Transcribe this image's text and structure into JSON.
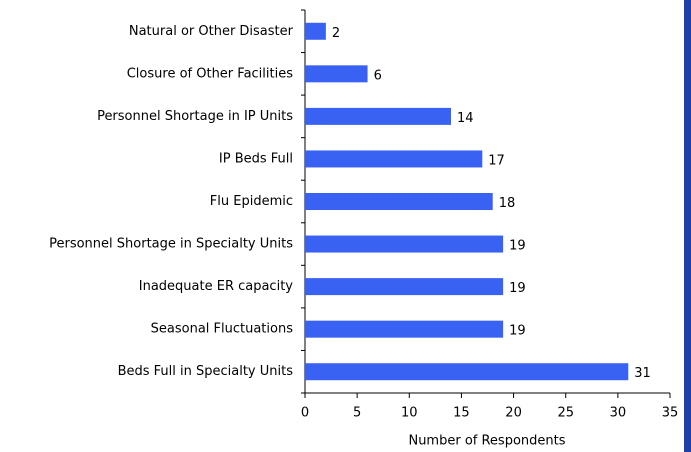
{
  "chart_data": {
    "type": "bar",
    "orientation": "horizontal",
    "x_label": "Number of Respondents",
    "categories": [
      "Natural or Other Disaster",
      "Closure of Other Facilities",
      "Personnel Shortage in IP Units",
      "IP Beds Full",
      "Flu Epidemic",
      "Personnel Shortage in Specialty Units",
      "Inadequate ER capacity",
      "Seasonal Fluctuations",
      "Beds Full in Specialty Units"
    ],
    "values": [
      2,
      6,
      14,
      17,
      18,
      19,
      19,
      19,
      31
    ],
    "color": "#3a62f2",
    "xlim": [
      0,
      35
    ],
    "xticks": [
      0,
      5,
      10,
      15,
      20,
      25,
      30,
      35
    ]
  }
}
